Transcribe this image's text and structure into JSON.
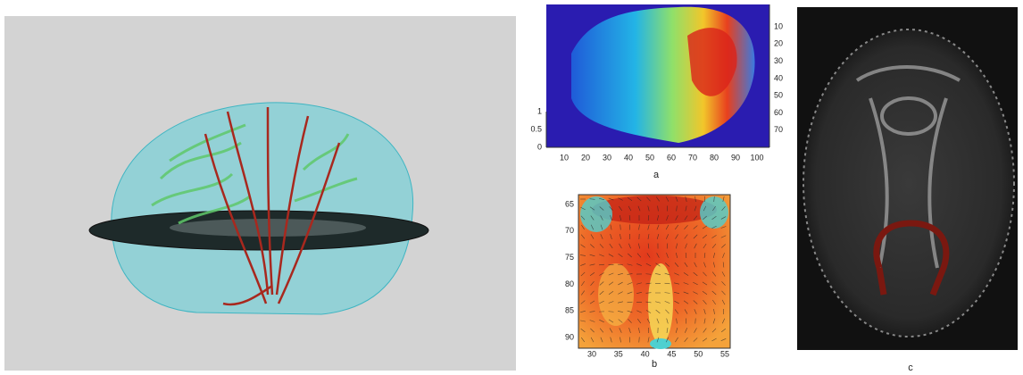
{
  "panels": {
    "a": {
      "label": "a",
      "x_ticks": [
        10,
        20,
        30,
        40,
        50,
        60,
        70,
        80,
        90,
        100
      ],
      "left_ticks": [
        0,
        0.5,
        1
      ],
      "right_ticks": [
        10,
        20,
        30,
        40,
        50,
        60,
        70
      ]
    },
    "b": {
      "label": "b",
      "x_ticks": [
        30,
        35,
        40,
        45,
        50,
        55
      ],
      "y_ticks": [
        65,
        70,
        75,
        80,
        85,
        90
      ]
    },
    "c": {
      "label": "c"
    }
  }
}
